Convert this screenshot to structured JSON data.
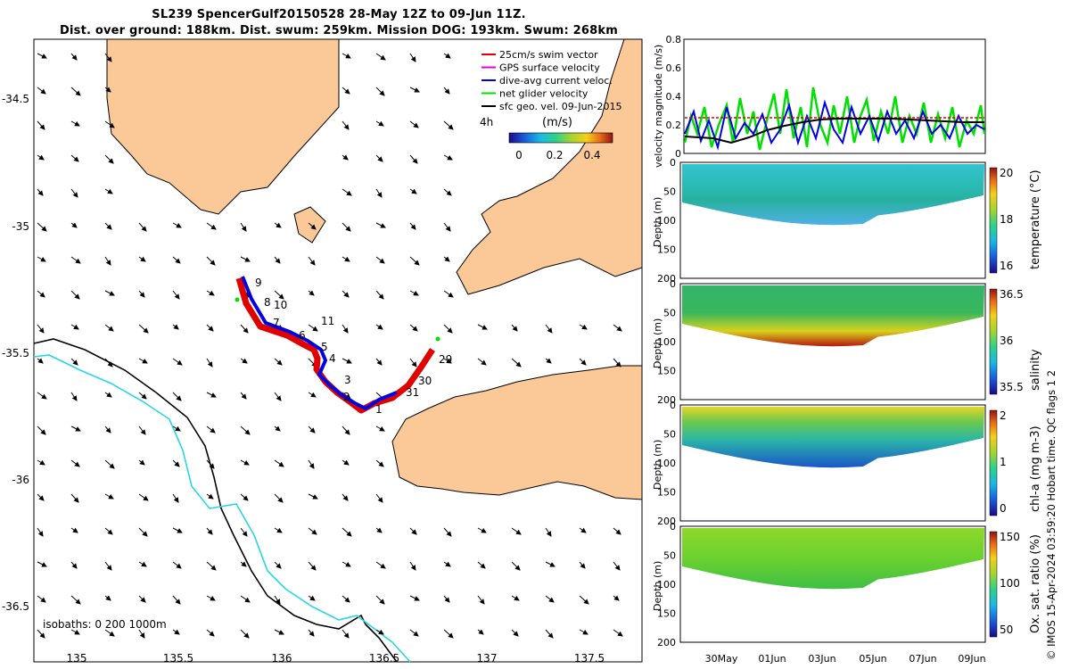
{
  "title": {
    "line1": "SL239 SpencerGulf20150528 28-May 12Z to 09-Jun 11Z.",
    "line2": "Dist. over ground: 188km. Dist. swum: 259km. Mission DOG: 193km. Swum: 268km"
  },
  "map": {
    "lon_ticks": [
      "135",
      "135.5",
      "136",
      "136.5",
      "137",
      "137.5"
    ],
    "lat_ticks": [
      "-34.5",
      "-35",
      "-35.5",
      "-36",
      "-36.5"
    ],
    "isobaths_label": "isobaths: 0   200  1000m",
    "legend": [
      {
        "label": "25cm/s swim vector",
        "color": "#e00000"
      },
      {
        "label": "GPS surface velocity",
        "color": "#e000e0"
      },
      {
        "label": "dive-avg current veloc.",
        "color": "#0000e0"
      },
      {
        "label": "net glider velocity",
        "color": "#00e000"
      },
      {
        "label": "sfc geo. vel. 09-Jun-2015",
        "color": "#000000"
      }
    ],
    "colorbar": {
      "label": "(m/s)",
      "ticks": [
        "0",
        "0.2",
        "0.4"
      ],
      "corner_label": "4h"
    },
    "day_labels": [
      "9",
      "8",
      "10",
      "7",
      "11",
      "6",
      "5",
      "4",
      "3",
      "2",
      "1",
      "31",
      "30",
      "29"
    ],
    "colors": {
      "land": "#fbc898",
      "isobath_200": "#000000",
      "isobath_1000": "#29d6e4"
    }
  },
  "panels": {
    "velocity": {
      "ylabel": "velocity magnitude (m/s)",
      "yticks": [
        "0",
        "0.2",
        "0.4",
        "0.6",
        "0.8"
      ]
    },
    "temperature": {
      "ylabel": "Depth (m)",
      "yticks": [
        "0",
        "50",
        "100",
        "150",
        "200"
      ],
      "cbar_label": "temperature (°C)",
      "cbar_ticks": [
        "20",
        "18",
        "16"
      ]
    },
    "salinity": {
      "ylabel": "Depth (m)",
      "yticks": [
        "0",
        "50",
        "100",
        "150",
        "200"
      ],
      "cbar_label": "salinity",
      "cbar_ticks": [
        "36.5",
        "36",
        "35.5"
      ]
    },
    "chla": {
      "ylabel": "Depth (m)",
      "yticks": [
        "0",
        "50",
        "100",
        "150",
        "200"
      ],
      "cbar_label": "chl-a (mg m-3)",
      "cbar_ticks": [
        "2",
        "1",
        "0"
      ]
    },
    "oxygen": {
      "ylabel": "Depth (m)",
      "yticks": [
        "0",
        "50",
        "100",
        "150",
        "200"
      ],
      "cbar_label": "Ox. sat. ratio (%)",
      "cbar_ticks": [
        "150",
        "100",
        "50"
      ]
    },
    "xticks": [
      "30May",
      "01Jun",
      "03Jun",
      "05Jun",
      "07Jun",
      "09Jun"
    ]
  },
  "side_note": "© IMOS 15-Apr-2024 03:59:20 Hobart time. QC flags 1  2"
}
